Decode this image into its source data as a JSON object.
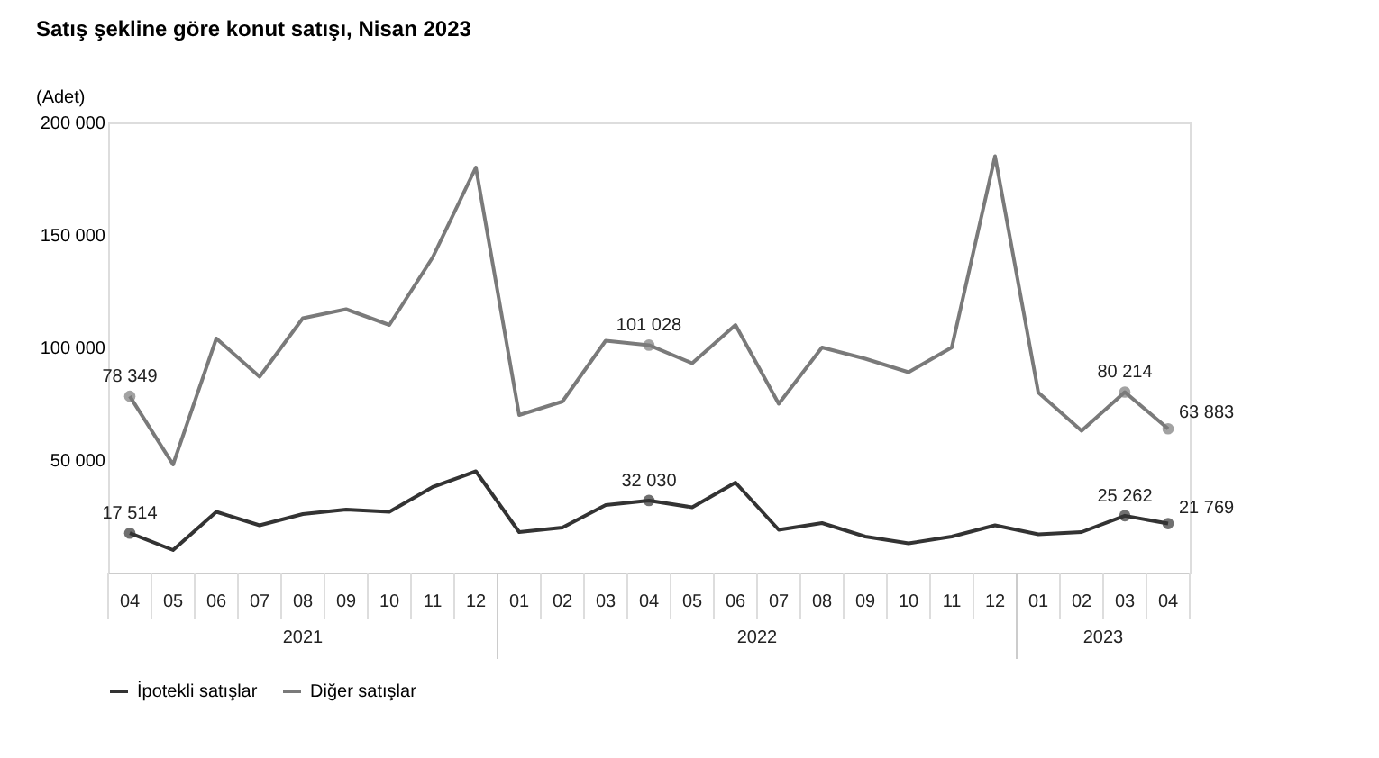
{
  "chart_data": {
    "type": "line",
    "title": "Satış şekline göre konut satışı, Nisan 2023",
    "ylabel": "(Adet)",
    "categories": [
      "04",
      "05",
      "06",
      "07",
      "08",
      "09",
      "10",
      "11",
      "12",
      "01",
      "02",
      "03",
      "04",
      "05",
      "06",
      "07",
      "08",
      "09",
      "10",
      "11",
      "12",
      "01",
      "02",
      "03",
      "04"
    ],
    "annotations": [
      "2021",
      "2022",
      "2023"
    ],
    "series": [
      {
        "name": "İpotekli satışlar",
        "color": "#333333",
        "values": [
          17514,
          10000,
          27000,
          21000,
          26000,
          28000,
          27000,
          38000,
          45000,
          18000,
          20000,
          30000,
          32030,
          29000,
          40000,
          19000,
          22000,
          16000,
          13000,
          16000,
          21000,
          17000,
          18000,
          25262,
          21769
        ],
        "value_labels": [
          "17 514",
          null,
          null,
          null,
          null,
          null,
          null,
          null,
          null,
          null,
          null,
          null,
          "32 030",
          null,
          null,
          null,
          null,
          null,
          null,
          null,
          null,
          null,
          null,
          "25 262",
          "21 769"
        ]
      },
      {
        "name": "Diğer satışlar",
        "color": "#7a7a7a",
        "values": [
          78349,
          48000,
          104000,
          87000,
          113000,
          117000,
          110000,
          140000,
          180000,
          70000,
          76000,
          103000,
          101028,
          93000,
          110000,
          75000,
          100000,
          95000,
          89000,
          100000,
          185000,
          80000,
          63000,
          80214,
          63883
        ],
        "value_labels": [
          "78 349",
          null,
          null,
          null,
          null,
          null,
          null,
          null,
          null,
          null,
          null,
          null,
          "101 028",
          null,
          null,
          null,
          null,
          null,
          null,
          null,
          null,
          null,
          null,
          "80 214",
          "63 883"
        ]
      }
    ],
    "ylim": [
      0,
      200000
    ],
    "yticks": [
      {
        "value": 50000,
        "label": "50 000"
      },
      {
        "value": 100000,
        "label": "100 000"
      },
      {
        "value": 150000,
        "label": "150 000"
      },
      {
        "value": 200000,
        "label": "200 000"
      }
    ],
    "grid": false,
    "legend": "bottom"
  }
}
